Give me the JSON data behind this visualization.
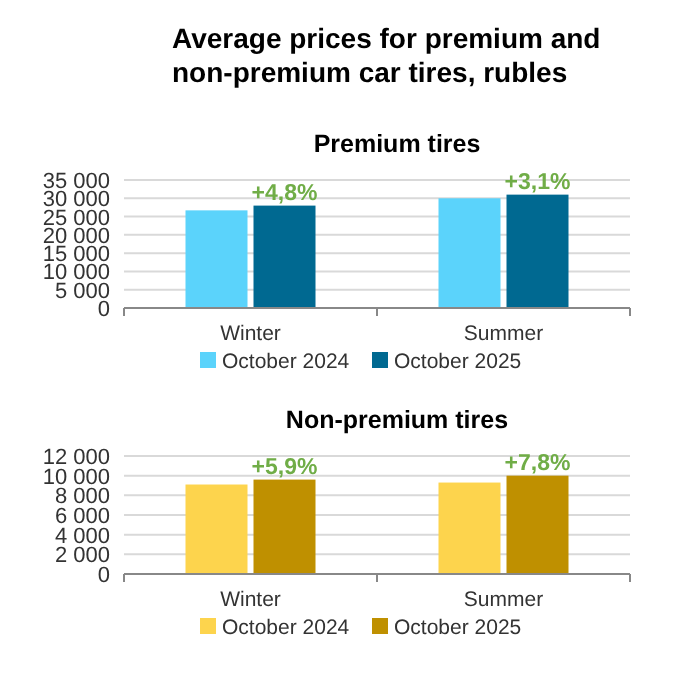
{
  "chart_data": [
    {
      "type": "bar",
      "title": "Average prices for premium and non-premium car tires, rubles",
      "subtitle": "Premium tires",
      "categories": [
        "Winter",
        "Summer"
      ],
      "series": [
        {
          "name": "October 2024",
          "color": "#5bd3fb",
          "values": [
            26700,
            30000
          ]
        },
        {
          "name": "October 2025",
          "color": "#006991",
          "values": [
            28000,
            31000
          ]
        }
      ],
      "ylim": [
        0,
        35000
      ],
      "yticks": [
        {
          "value": 0,
          "label": "0"
        },
        {
          "value": 5000,
          "label": "5 000"
        },
        {
          "value": 10000,
          "label": "10 000"
        },
        {
          "value": 15000,
          "label": "15 000"
        },
        {
          "value": 20000,
          "label": "20 000"
        },
        {
          "value": 25000,
          "label": "25 000"
        },
        {
          "value": 30000,
          "label": "30 000"
        },
        {
          "value": 35000,
          "label": "35 000"
        }
      ],
      "annotations": [
        {
          "text": "+4,8%",
          "x": "Winter",
          "y": 28000
        },
        {
          "text": "+3,1%",
          "x": "Summer",
          "y": 31000
        }
      ],
      "grid": "y",
      "legend": "bottom"
    },
    {
      "type": "bar",
      "title": "Non-premium tires",
      "categories": [
        "Winter",
        "Summer"
      ],
      "series": [
        {
          "name": "October 2024",
          "color": "#fdd44d",
          "values": [
            9100,
            9300
          ]
        },
        {
          "name": "October 2025",
          "color": "#bf9000",
          "values": [
            9600,
            10000
          ]
        }
      ],
      "ylim": [
        0,
        12000
      ],
      "yticks": [
        {
          "value": 0,
          "label": "0"
        },
        {
          "value": 2000,
          "label": "2 000"
        },
        {
          "value": 4000,
          "label": "4 000"
        },
        {
          "value": 6000,
          "label": "6 000"
        },
        {
          "value": 8000,
          "label": "8 000"
        },
        {
          "value": 10000,
          "label": "10 000"
        },
        {
          "value": 12000,
          "label": "12 000"
        }
      ],
      "annotations": [
        {
          "text": "+5,9%",
          "x": "Winter",
          "y": 9600
        },
        {
          "text": "+7,8%",
          "x": "Summer",
          "y": 10000
        }
      ],
      "grid": "y",
      "legend": "bottom"
    }
  ]
}
